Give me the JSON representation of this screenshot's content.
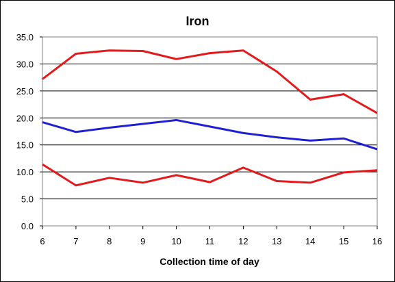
{
  "chart_data": {
    "type": "line",
    "title": "Iron",
    "xlabel": "Collection time of day",
    "ylabel": "",
    "x": [
      6,
      7,
      8,
      9,
      10,
      11,
      12,
      13,
      14,
      15,
      16
    ],
    "xlim": [
      6,
      16
    ],
    "ylim": [
      0,
      35
    ],
    "yticks": [
      "0.0",
      "5.0",
      "10.0",
      "15.0",
      "20.0",
      "25.0",
      "30.0",
      "35.0"
    ],
    "xticks": [
      "6",
      "7",
      "8",
      "9",
      "10",
      "11",
      "12",
      "13",
      "14",
      "15",
      "16"
    ],
    "grid": "horizontal",
    "legend": "none",
    "series": [
      {
        "color": "#e31a1c",
        "values": [
          27.2,
          31.9,
          32.5,
          32.4,
          30.9,
          32.0,
          32.5,
          28.6,
          23.4,
          24.4,
          20.9
        ]
      },
      {
        "color": "#1f1fd6",
        "values": [
          19.2,
          17.4,
          18.2,
          18.9,
          19.6,
          18.4,
          17.2,
          16.4,
          15.8,
          16.2,
          14.2
        ]
      },
      {
        "color": "#e31a1c",
        "values": [
          11.4,
          7.5,
          8.9,
          8.0,
          9.4,
          8.1,
          10.8,
          8.3,
          8.0,
          9.9,
          10.3
        ]
      }
    ]
  }
}
